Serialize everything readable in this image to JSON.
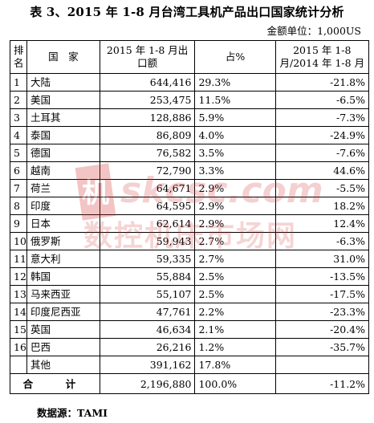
{
  "title": "表 3、2015 年 1-8 月台湾工具机产品出口国家统计分析",
  "unit": "金额单位：1,000US",
  "header": {
    "rank": "排名",
    "country": "国　家",
    "export": "2015 年 1-8 月出口额",
    "share": "占%",
    "growth": "2015 年 1-8 月/2014 年 1-8 月"
  },
  "rows": [
    {
      "rank": "1",
      "country": "大陆",
      "export": "644,416",
      "share": "29.3%",
      "growth": "-21.8%"
    },
    {
      "rank": "2",
      "country": "美国",
      "export": "253,475",
      "share": "11.5%",
      "growth": "-6.5%"
    },
    {
      "rank": "3",
      "country": "土耳其",
      "export": "128,886",
      "share": "5.9%",
      "growth": "-7.3%"
    },
    {
      "rank": "4",
      "country": "泰国",
      "export": "86,809",
      "share": "4.0%",
      "growth": "-24.9%"
    },
    {
      "rank": "5",
      "country": "德国",
      "export": "76,582",
      "share": "3.5%",
      "growth": "-7.6%"
    },
    {
      "rank": "6",
      "country": "越南",
      "export": "72,790",
      "share": "3.3%",
      "growth": "44.6%"
    },
    {
      "rank": "7",
      "country": "荷兰",
      "export": "64,671",
      "share": "2.9%",
      "growth": "-5.5%"
    },
    {
      "rank": "8",
      "country": "印度",
      "export": "64,595",
      "share": "2.9%",
      "growth": "18.2%"
    },
    {
      "rank": "9",
      "country": "日本",
      "export": "62,614",
      "share": "2.9%",
      "growth": "12.4%"
    },
    {
      "rank": "10",
      "country": "俄罗斯",
      "export": "59,943",
      "share": "2.7%",
      "growth": "-6.3%"
    },
    {
      "rank": "11",
      "country": "意大利",
      "export": "59,335",
      "share": "2.7%",
      "growth": "31.0%"
    },
    {
      "rank": "12",
      "country": "韩国",
      "export": "55,884",
      "share": "2.5%",
      "growth": "-13.5%"
    },
    {
      "rank": "13",
      "country": "马来西亚",
      "export": "55,107",
      "share": "2.5%",
      "growth": "-17.5%"
    },
    {
      "rank": "14",
      "country": "印度尼西亚",
      "export": "47,761",
      "share": "2.2%",
      "growth": "-23.3%"
    },
    {
      "rank": "15",
      "country": "英国",
      "export": "46,634",
      "share": "2.1%",
      "growth": "-20.4%"
    },
    {
      "rank": "16",
      "country": "巴西",
      "export": "26,216",
      "share": "1.2%",
      "growth": "-35.7%"
    },
    {
      "rank": "",
      "country": "其他",
      "export": "391,162",
      "share": "17.8%",
      "growth": ""
    }
  ],
  "total": {
    "label": "合　计",
    "export": "2,196,880",
    "share": "100.0%",
    "growth": "-11.2%"
  },
  "source": "数据源：TAMI",
  "watermark": {
    "logo_char": "机",
    "url": "skcsc.com",
    "text": "数控机床市场网",
    "color": "#d23030"
  }
}
